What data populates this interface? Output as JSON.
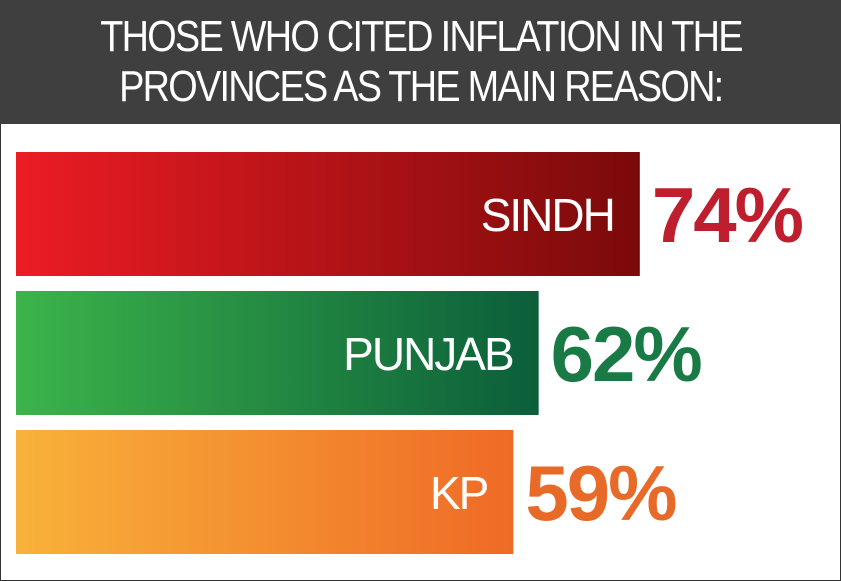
{
  "header": {
    "line1": "THOSE WHO CITED INFLATION IN THE",
    "line2": "PROVINCES AS THE MAIN REASON:"
  },
  "chart_data": {
    "type": "bar",
    "orientation": "horizontal",
    "categories": [
      "SINDH",
      "PUNJAB",
      "KP"
    ],
    "values": [
      74,
      62,
      59
    ],
    "value_labels": [
      "74%",
      "62%",
      "59%"
    ],
    "unit": "%",
    "grid": false,
    "colors": [
      {
        "start": "#ec1c24",
        "end": "#7a0a0a",
        "label": "#be1e2d"
      },
      {
        "start": "#3cb44a",
        "end": "#0b5e3a",
        "label": "#1a7a45"
      },
      {
        "start": "#f8b23a",
        "end": "#ef6a26",
        "label": "#e86a28"
      }
    ]
  }
}
